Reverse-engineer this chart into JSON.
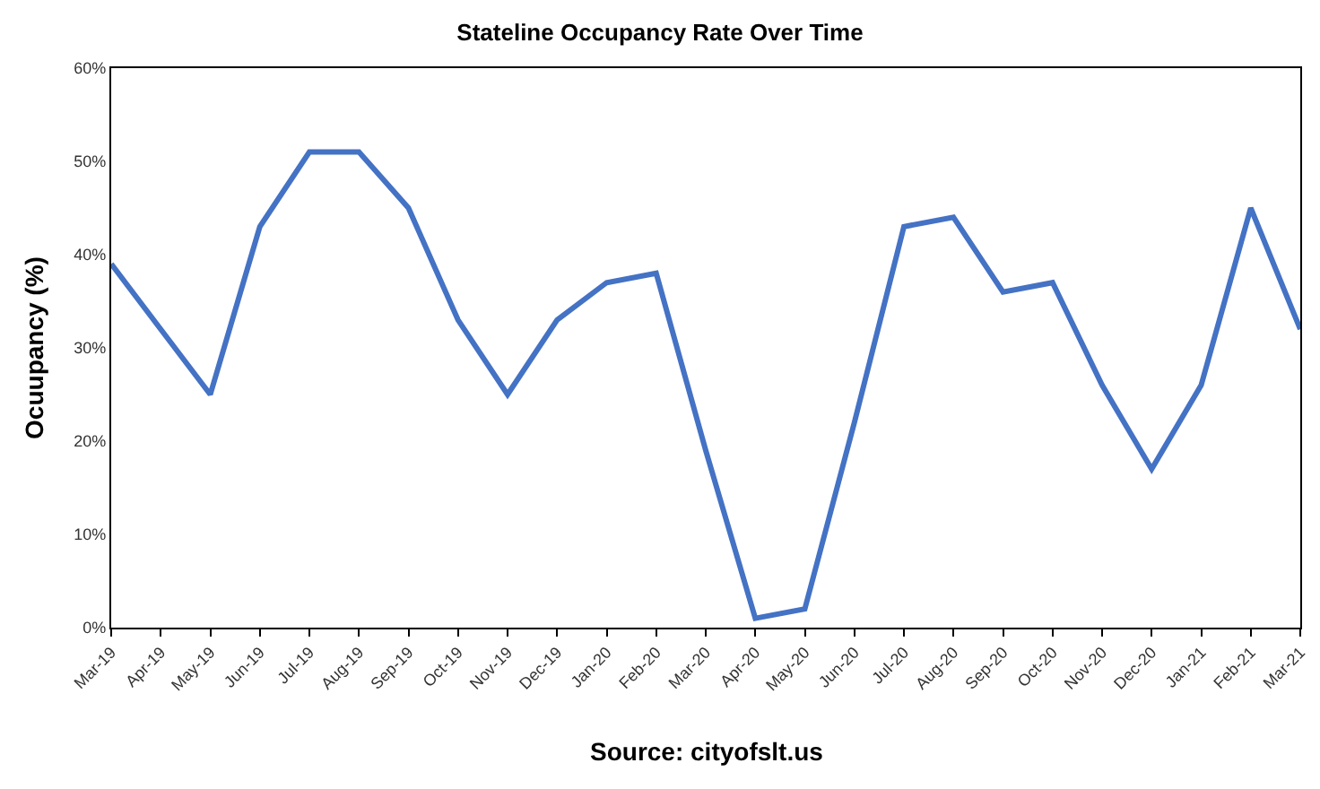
{
  "chart_data": {
    "type": "line",
    "title": "Stateline Occupancy Rate Over Time",
    "ylabel": "Ocuupancy (%)",
    "categories": [
      "Mar-19",
      "Apr-19",
      "May-19",
      "Jun-19",
      "Jul-19",
      "Aug-19",
      "Sep-19",
      "Oct-19",
      "Nov-19",
      "Dec-19",
      "Jan-20",
      "Feb-20",
      "Mar-20",
      "Apr-20",
      "May-20",
      "Jun-20",
      "Jul-20",
      "Aug-20",
      "Sep-20",
      "Oct-20",
      "Nov-20",
      "Dec-20",
      "Jan-21",
      "Feb-21",
      "Mar-21"
    ],
    "series": [
      {
        "color": "#4472c4",
        "values": [
          39,
          32,
          25,
          43,
          51,
          51,
          45,
          33,
          25,
          33,
          37,
          38,
          19,
          1,
          2,
          22,
          43,
          44,
          36,
          37,
          26,
          17,
          26,
          45,
          32
        ]
      }
    ],
    "ylim": [
      0,
      60
    ],
    "yticks": [
      {
        "value": 0,
        "label": "0%"
      },
      {
        "value": 10,
        "label": "10%"
      },
      {
        "value": 20,
        "label": "20%"
      },
      {
        "value": 30,
        "label": "30%"
      },
      {
        "value": 40,
        "label": "40%"
      },
      {
        "value": 50,
        "label": "50%"
      },
      {
        "value": 60,
        "label": "60%"
      }
    ],
    "grid": false,
    "marker": "none",
    "line_style": "solid",
    "annotations": [
      "Source: cityofslt.us"
    ]
  }
}
